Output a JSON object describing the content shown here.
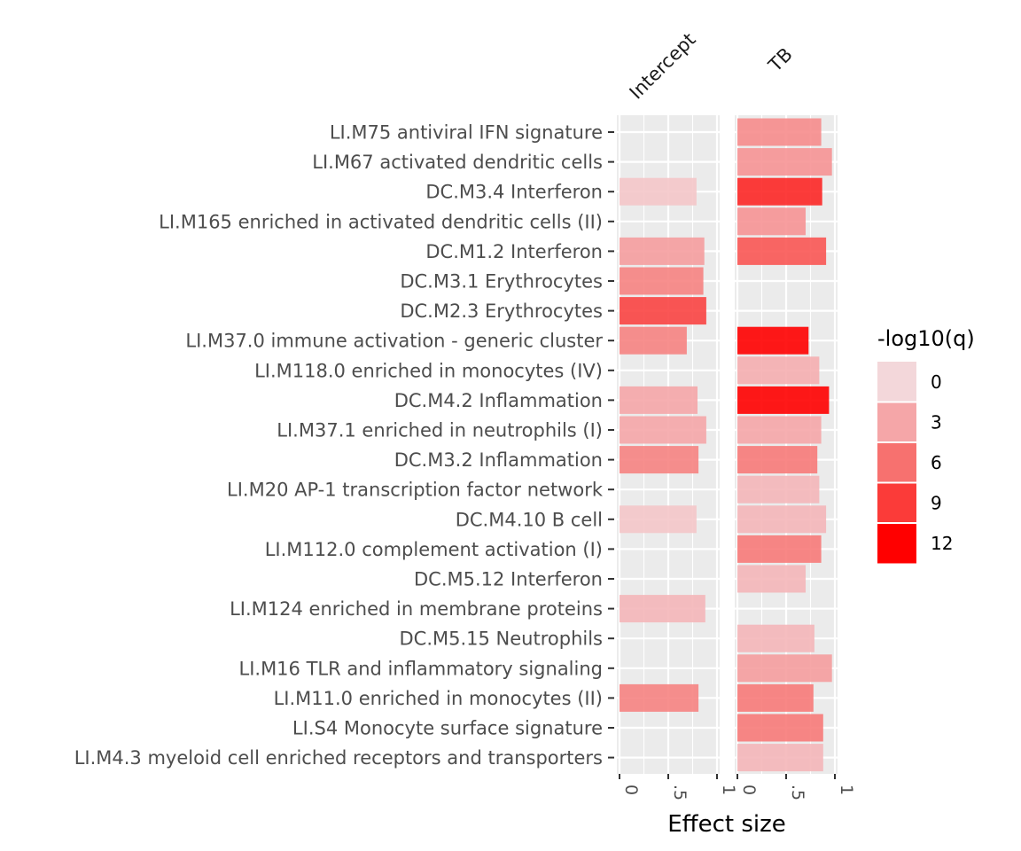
{
  "chart_data": {
    "type": "bar",
    "orientation": "horizontal",
    "facets": [
      "Intercept",
      "TB"
    ],
    "xlabel": "Effect size",
    "xlim": [
      0,
      1
    ],
    "x_ticks": [
      "0",
      ".5",
      "1"
    ],
    "grid": true,
    "categories": [
      "LI.M75 antiviral IFN signature",
      "LI.M67 activated dendritic cells",
      "DC.M3.4 Interferon",
      "LI.M165 enriched in activated dendritic cells (II)",
      "DC.M1.2 Interferon",
      "DC.M3.1 Erythrocytes",
      "DC.M2.3 Erythrocytes",
      "LI.M37.0 immune activation - generic cluster",
      "LI.M118.0 enriched in monocytes (IV)",
      "DC.M4.2 Inflammation",
      "LI.M37.1 enriched in neutrophils (I)",
      "DC.M3.2 Inflammation",
      "LI.M20 AP-1 transcription factor network",
      "DC.M4.10 B cell",
      "LI.M112.0 complement activation (I)",
      "DC.M5.12 Interferon",
      "LI.M124 enriched in membrane proteins",
      "DC.M5.15 Neutrophils",
      "LI.M16 TLR and inflammatory signaling",
      "LI.M11.0 enriched in monocytes (II)",
      "LI.S4 Monocyte surface signature",
      "LI.M4.3 myeloid cell enriched receptors and transporters"
    ],
    "series": [
      {
        "name": "Intercept",
        "values": [
          null,
          null,
          0.79,
          null,
          0.87,
          0.86,
          0.89,
          0.69,
          null,
          0.8,
          0.89,
          0.81,
          null,
          0.79,
          null,
          null,
          0.88,
          null,
          null,
          0.81,
          null,
          null
        ],
        "neg_log10_q": [
          null,
          null,
          1,
          null,
          3.5,
          5,
          8.5,
          5,
          null,
          3,
          3,
          5,
          null,
          1,
          null,
          null,
          2,
          null,
          null,
          5,
          null,
          null
        ]
      },
      {
        "name": "TB",
        "values": [
          0.86,
          0.97,
          0.87,
          0.7,
          0.91,
          null,
          null,
          0.73,
          0.84,
          0.94,
          0.86,
          0.82,
          0.84,
          0.91,
          0.86,
          0.7,
          null,
          0.79,
          0.97,
          0.78,
          0.88,
          0.88
        ],
        "neg_log10_q": [
          4.5,
          4,
          10,
          4,
          7.5,
          null,
          null,
          12.5,
          2.5,
          12,
          3,
          5.5,
          2,
          2,
          5.5,
          2,
          null,
          2,
          3.5,
          5.5,
          5.5,
          2
        ]
      }
    ],
    "legend": {
      "title": "-log10(q)",
      "position": "right",
      "labels": [
        "0",
        "3",
        "6",
        "9",
        "12"
      ],
      "colors": [
        "#f3d7da",
        "#f5a6a8",
        "#f7716f",
        "#fb3b39",
        "#ff0000"
      ]
    },
    "panel_color": "#ebebeb",
    "grid_color": "#ffffff"
  }
}
